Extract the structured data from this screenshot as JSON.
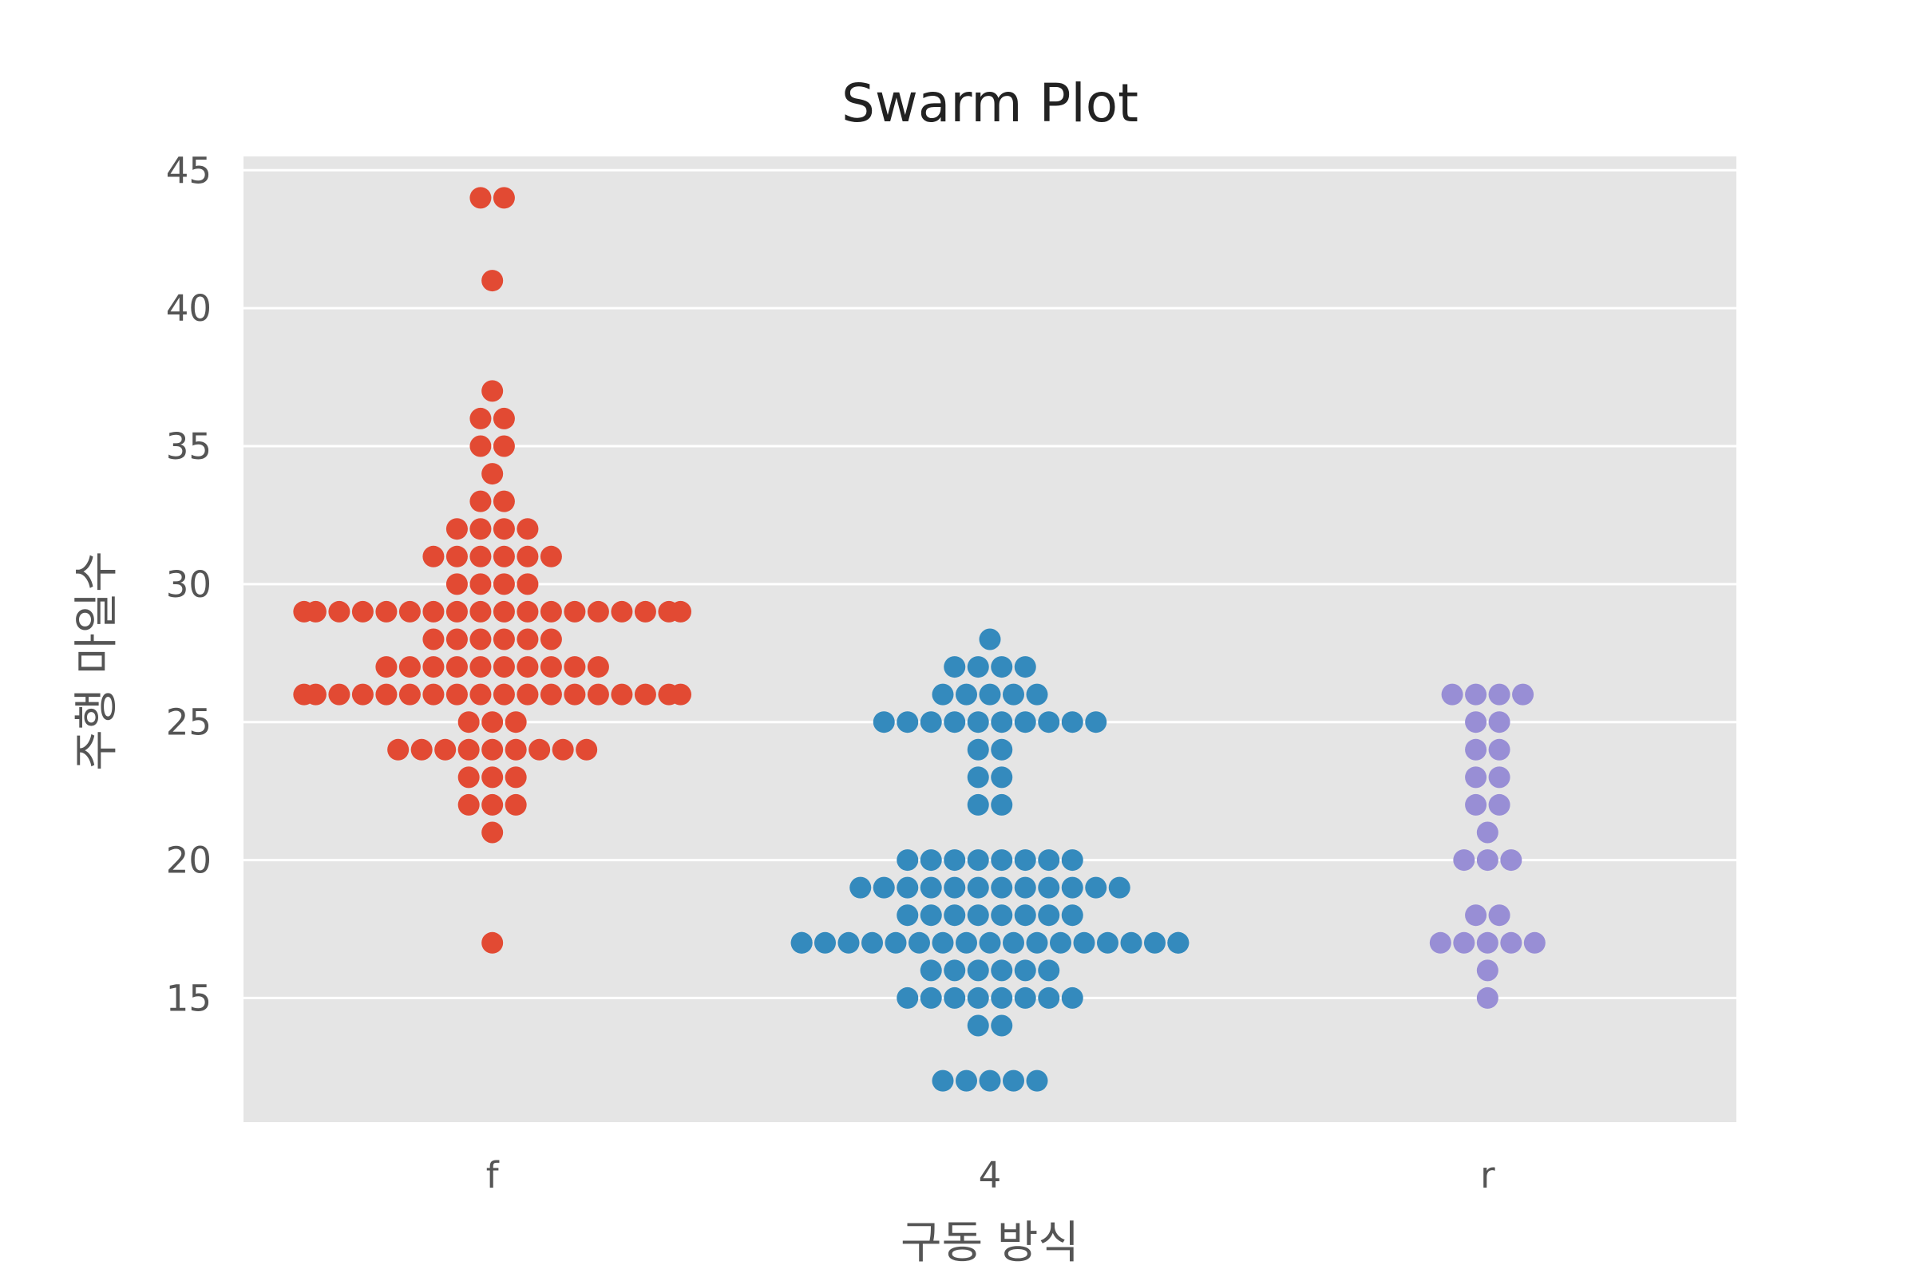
{
  "chart_data": {
    "type": "scatter",
    "subtype": "swarm",
    "title": "Swarm Plot",
    "xlabel": "구동 방식",
    "ylabel": "주행 마일수",
    "categories": [
      "f",
      "4",
      "r"
    ],
    "ylim": [
      10.5,
      45.5
    ],
    "yticks": [
      15,
      20,
      25,
      30,
      35,
      40,
      45
    ],
    "grid": true,
    "colors": {
      "f": "#E24A33",
      "4": "#348ABD",
      "r": "#988ED5",
      "background": "#E5E5E5",
      "grid": "#FFFFFF"
    },
    "series": [
      {
        "category": "f",
        "values": [
          44,
          44,
          41,
          37,
          36,
          36,
          35,
          35,
          34,
          33,
          33,
          32,
          32,
          32,
          32,
          31,
          31,
          31,
          31,
          31,
          31,
          30,
          30,
          30,
          30,
          29,
          29,
          29,
          29,
          29,
          29,
          29,
          29,
          29,
          29,
          29,
          29,
          29,
          29,
          29,
          29,
          29,
          29,
          28,
          28,
          28,
          28,
          28,
          28,
          27,
          27,
          27,
          27,
          27,
          27,
          27,
          27,
          27,
          27,
          26,
          26,
          26,
          26,
          26,
          26,
          26,
          26,
          26,
          26,
          26,
          26,
          26,
          26,
          26,
          26,
          26,
          26,
          25,
          25,
          25,
          24,
          24,
          24,
          24,
          24,
          24,
          24,
          24,
          24,
          23,
          23,
          23,
          22,
          22,
          22,
          21,
          17
        ]
      },
      {
        "category": "4",
        "values": [
          28,
          27,
          27,
          27,
          27,
          26,
          26,
          26,
          26,
          26,
          25,
          25,
          25,
          25,
          25,
          25,
          25,
          25,
          25,
          25,
          24,
          24,
          23,
          23,
          22,
          22,
          20,
          20,
          20,
          20,
          20,
          20,
          20,
          20,
          19,
          19,
          19,
          19,
          19,
          19,
          19,
          19,
          19,
          19,
          19,
          19,
          18,
          18,
          18,
          18,
          18,
          18,
          18,
          18,
          17,
          17,
          17,
          17,
          17,
          17,
          17,
          17,
          17,
          17,
          17,
          17,
          17,
          17,
          17,
          17,
          17,
          17,
          17,
          16,
          16,
          16,
          16,
          16,
          16,
          15,
          15,
          15,
          15,
          15,
          15,
          15,
          15,
          14,
          14,
          12,
          12,
          12,
          12,
          12
        ]
      },
      {
        "category": "r",
        "values": [
          26,
          26,
          26,
          26,
          25,
          25,
          24,
          24,
          23,
          23,
          22,
          22,
          21,
          20,
          20,
          20,
          18,
          18,
          17,
          17,
          17,
          17,
          17,
          16,
          15
        ]
      }
    ]
  }
}
